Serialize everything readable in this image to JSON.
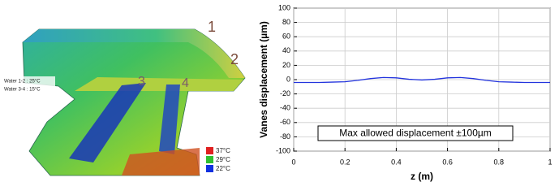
{
  "thermal_map": {
    "labels": [
      "1",
      "2",
      "3",
      "4"
    ],
    "water": [
      "Water 1-2 : 25°C",
      "Water 3-4 : 15°C"
    ],
    "legend": [
      {
        "label": "37°C",
        "color": "#e02020"
      },
      {
        "label": "29°C",
        "color": "#30c030"
      },
      {
        "label": "22°C",
        "color": "#1030e0"
      }
    ]
  },
  "chart_data": {
    "type": "line",
    "ylabel": "Vanes displacement (µm)",
    "xlabel": "z (m)",
    "annotation": "Max allowed displacement ±100µm",
    "x": [
      0,
      0.05,
      0.1,
      0.15,
      0.2,
      0.25,
      0.3,
      0.35,
      0.4,
      0.45,
      0.5,
      0.55,
      0.6,
      0.65,
      0.7,
      0.75,
      0.8,
      0.85,
      0.9,
      0.95,
      1
    ],
    "series": [
      {
        "color": "#2233dd",
        "values": [
          -4,
          -4,
          -4,
          -3.5,
          -3,
          -1,
          1.5,
          3,
          2.5,
          0.5,
          -0.5,
          0.5,
          2.5,
          3,
          1.5,
          -1,
          -3,
          -3.5,
          -4,
          -4,
          -4
        ]
      }
    ],
    "xlim": [
      0,
      1
    ],
    "xticks": [
      0,
      0.2,
      0.4,
      0.6,
      0.8,
      1
    ],
    "ylim": [
      -100,
      100
    ],
    "yticks": [
      -100,
      -80,
      -60,
      -40,
      -20,
      0,
      20,
      40,
      60,
      80,
      100
    ],
    "grid": true
  }
}
